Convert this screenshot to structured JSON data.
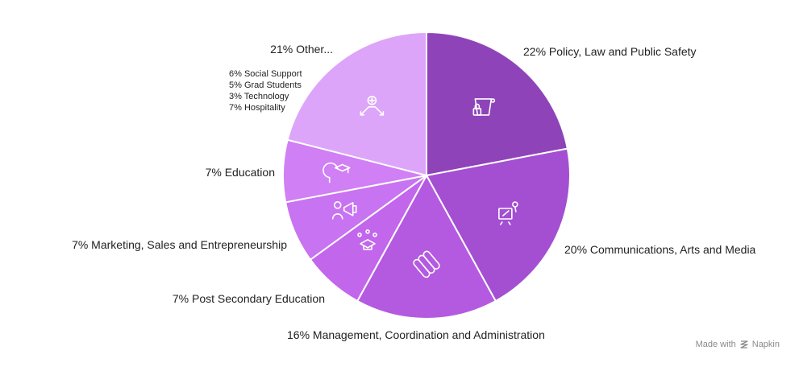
{
  "chart_data": {
    "type": "pie",
    "title": "",
    "slices": [
      {
        "value": 22,
        "label": "22% Policy, Law and Public Safety",
        "color": "#8e44b8",
        "icon": "bucket-lock-icon"
      },
      {
        "value": 20,
        "label": "20% Communications, Arts and Media",
        "color": "#a44fd2",
        "icon": "easel-icon"
      },
      {
        "value": 16,
        "label": "16% Management, Coordination and Administration",
        "color": "#b45ae0",
        "icon": "tools-icon"
      },
      {
        "value": 7,
        "label": "7% Post Secondary Education",
        "color": "#c266ec",
        "icon": "graduation-cap-icon"
      },
      {
        "value": 7,
        "label": "7% Marketing, Sales and Entrepreneurship",
        "color": "#c873f1",
        "icon": "megaphone-person-icon"
      },
      {
        "value": 7,
        "label": "7% Education",
        "color": "#d07ff4",
        "icon": "head-cap-icon"
      },
      {
        "value": 21,
        "label": "21% Other...",
        "color": "#dda5f9",
        "icon": "network-person-icon",
        "sublabels": [
          "6% Social Support",
          "5% Grad Students",
          "3% Technology",
          "7% Hospitality"
        ]
      }
    ]
  },
  "watermark": {
    "prefix": "Made with",
    "brand": "Napkin"
  }
}
